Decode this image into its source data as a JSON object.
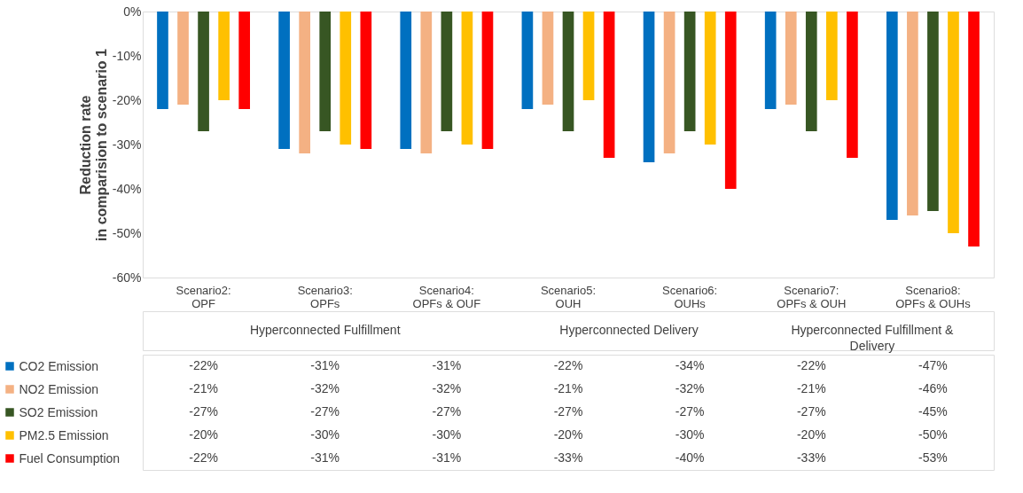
{
  "chart_data": {
    "type": "bar",
    "ylabel": "Reduction rate\nin comparision to scenario 1",
    "categories": [
      "Scenario2:\nOPF",
      "Scenario3:\nOPFs",
      "Scenario4:\nOPFs & OUF",
      "Scenario5:\nOUH",
      "Scenario6:\nOUHs",
      "Scenario7:\nOPFs & OUH",
      "Scenario8:\nOPFs & OUHs"
    ],
    "series": [
      {
        "name": "CO2 Emission",
        "color": "#0070c0",
        "values": [
          -22,
          -31,
          -31,
          -22,
          -34,
          -22,
          -47
        ],
        "value_labels": [
          "-22%",
          "-31%",
          "-31%",
          "-22%",
          "-34%",
          "-22%",
          "-47%"
        ]
      },
      {
        "name": "NO2 Emission",
        "color": "#f4b183",
        "values": [
          -21,
          -32,
          -32,
          -21,
          -32,
          -21,
          -46
        ],
        "value_labels": [
          "-21%",
          "-32%",
          "-32%",
          "-21%",
          "-32%",
          "-21%",
          "-46%"
        ]
      },
      {
        "name": "SO2 Emission",
        "color": "#375623",
        "values": [
          -27,
          -27,
          -27,
          -27,
          -27,
          -27,
          -45
        ],
        "value_labels": [
          "-27%",
          "-27%",
          "-27%",
          "-27%",
          "-27%",
          "-27%",
          "-45%"
        ]
      },
      {
        "name": "PM2.5 Emission",
        "color": "#ffc000",
        "values": [
          -20,
          -30,
          -30,
          -20,
          -30,
          -20,
          -50
        ],
        "value_labels": [
          "-20%",
          "-30%",
          "-30%",
          "-20%",
          "-30%",
          "-20%",
          "-50%"
        ]
      },
      {
        "name": "Fuel Consumption",
        "color": "#ff0000",
        "values": [
          -22,
          -31,
          -31,
          -33,
          -40,
          -33,
          -53
        ],
        "value_labels": [
          "-22%",
          "-31%",
          "-31%",
          "-33%",
          "-40%",
          "-33%",
          "-53%"
        ]
      }
    ],
    "annotations": [
      "Hyperconnected Fulfillment",
      "Hyperconnected Delivery",
      "Hyperconnected Fulfillment &\nDelivery"
    ],
    "ylim": [
      -60,
      0
    ],
    "yticks": [
      {
        "value": -60,
        "label": "-60%"
      },
      {
        "value": -50,
        "label": "-50%"
      },
      {
        "value": -40,
        "label": "-40%"
      },
      {
        "value": -30,
        "label": "-30%"
      },
      {
        "value": -20,
        "label": "-20%"
      },
      {
        "value": -10,
        "label": "-10%"
      },
      {
        "value": 0,
        "label": "0%"
      }
    ],
    "grid": false,
    "legend": "bottom"
  }
}
